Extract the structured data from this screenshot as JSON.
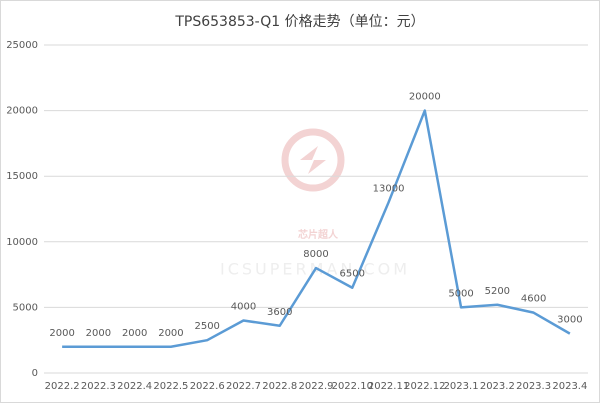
{
  "chart_data": {
    "type": "line",
    "title": "TPS653853-Q1 价格走势（单位：元）",
    "categories": [
      "2022.2",
      "2022.3",
      "2022.4",
      "2022.5",
      "2022.6",
      "2022.7",
      "2022.8",
      "2022.9",
      "2022.10",
      "2022.11",
      "2022.12",
      "2023.1",
      "2023.2",
      "2023.3",
      "2023.4"
    ],
    "values": [
      2000,
      2000,
      2000,
      2000,
      2500,
      4000,
      3600,
      8000,
      6500,
      13000,
      20000,
      5000,
      5200,
      4600,
      3000
    ],
    "color": "#5b9bd5",
    "ylim": [
      0,
      25000
    ],
    "yticks": [
      0,
      5000,
      10000,
      15000,
      20000,
      25000
    ],
    "grid": true,
    "watermark": "芯片超人",
    "watermark_url": "ICSUPERMAN.COM"
  }
}
